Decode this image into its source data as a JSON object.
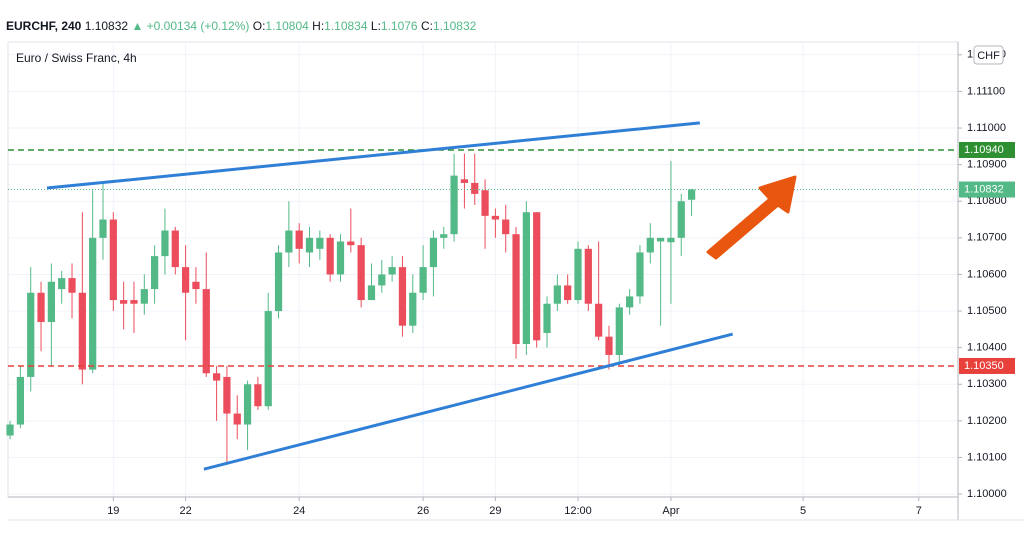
{
  "header": {
    "symbol": "EURCHF, 240",
    "change": "▲ +0.00134 (+0.12%)",
    "open_label": "O:",
    "high_label": "H:",
    "low_label": "L:",
    "close_label": "C:"
  },
  "chart_data": {
    "type": "candlestick",
    "legend": "Euro / Swiss Franc, 4h",
    "currency": "CHF",
    "up_color": "#53b987",
    "down_color": "#eb4d5c",
    "grid": true,
    "open": [
      1.1016,
      1.1019,
      1.1032,
      1.1055,
      1.1047,
      1.1056,
      1.1059,
      1.1055,
      1.1034,
      1.107,
      1.1075,
      1.1053,
      1.1053,
      1.1052,
      1.1056,
      1.1065,
      1.1072,
      1.1062,
      1.1058,
      1.1056,
      1.1033,
      1.1032,
      1.1022,
      1.1019,
      1.103,
      1.1024,
      1.105,
      1.1066,
      1.1072,
      1.1066,
      1.1067,
      1.107,
      1.106,
      1.1069,
      1.1068,
      1.1053,
      1.1057,
      1.106,
      1.1062,
      1.1046,
      1.1055,
      1.1062,
      1.107,
      1.1071,
      1.1086,
      1.1085,
      1.1083,
      1.1076,
      1.1075,
      1.1071,
      1.1041,
      1.1077,
      1.1044,
      1.1052,
      1.1057,
      1.1053,
      1.1067,
      1.1052,
      1.1043,
      1.1038,
      1.1051,
      1.1054,
      1.1066,
      1.1069,
      1.10688,
      1.107,
      1.10804
    ],
    "high": [
      1.102,
      1.1035,
      1.1062,
      1.1058,
      1.1063,
      1.1061,
      1.1063,
      1.1077,
      1.1083,
      1.1085,
      1.1077,
      1.1058,
      1.1058,
      1.106,
      1.1068,
      1.1078,
      1.1073,
      1.1068,
      1.1062,
      1.1066,
      1.1035,
      1.1035,
      1.1027,
      1.1031,
      1.1032,
      1.1055,
      1.1068,
      1.108,
      1.1074,
      1.1073,
      1.1072,
      1.1071,
      1.1071,
      1.1078,
      1.107,
      1.1063,
      1.1064,
      1.1065,
      1.1065,
      1.106,
      1.1068,
      1.1072,
      1.1073,
      1.1093,
      1.1093,
      1.1093,
      1.1086,
      1.1078,
      1.1079,
      1.1073,
      1.108,
      1.1077,
      1.1054,
      1.106,
      1.106,
      1.1069,
      1.1068,
      1.1069,
      1.1046,
      1.1052,
      1.1056,
      1.1068,
      1.1074,
      1.107,
      1.1091,
      1.1082,
      1.10834
    ],
    "low": [
      1.1015,
      1.1018,
      1.1028,
      1.1039,
      1.1035,
      1.1052,
      1.1048,
      1.103,
      1.1033,
      1.1064,
      1.105,
      1.1045,
      1.1044,
      1.1049,
      1.1052,
      1.106,
      1.106,
      1.1042,
      1.1052,
      1.1032,
      1.102,
      1.1008,
      1.1015,
      1.1012,
      1.1023,
      1.1023,
      1.1048,
      1.1062,
      1.1063,
      1.1062,
      1.1064,
      1.1058,
      1.1058,
      1.1066,
      1.1051,
      1.1053,
      1.1055,
      1.1058,
      1.1043,
      1.1044,
      1.1053,
      1.1054,
      1.1067,
      1.1069,
      1.1078,
      1.1079,
      1.1067,
      1.107,
      1.1066,
      1.1037,
      1.1038,
      1.104,
      1.104,
      1.105,
      1.1052,
      1.1052,
      1.105,
      1.1042,
      1.1034,
      1.1035,
      1.1049,
      1.1052,
      1.1063,
      1.1046,
      1.1052,
      1.1065,
      1.1076
    ],
    "close": [
      1.1019,
      1.1032,
      1.1055,
      1.1047,
      1.1058,
      1.1059,
      1.1055,
      1.1034,
      1.107,
      1.1075,
      1.1053,
      1.1052,
      1.1052,
      1.1056,
      1.1065,
      1.1072,
      1.1062,
      1.1055,
      1.1056,
      1.1033,
      1.1031,
      1.1022,
      1.1019,
      1.103,
      1.1024,
      1.105,
      1.1066,
      1.1072,
      1.1067,
      1.107,
      1.107,
      1.106,
      1.1069,
      1.1068,
      1.1053,
      1.1057,
      1.106,
      1.1062,
      1.1046,
      1.1055,
      1.1062,
      1.107,
      1.1071,
      1.1087,
      1.1085,
      1.1082,
      1.1076,
      1.1075,
      1.1071,
      1.1041,
      1.1077,
      1.1042,
      1.1052,
      1.1057,
      1.1053,
      1.1067,
      1.1052,
      1.1043,
      1.1038,
      1.1051,
      1.1054,
      1.1066,
      1.107,
      1.107,
      1.107,
      1.108,
      1.10832
    ],
    "xlim": [
      -0.2,
      91.8
    ],
    "xticks": [
      {
        "value": 10,
        "label": "19"
      },
      {
        "value": 17,
        "label": "22"
      },
      {
        "value": 28,
        "label": "24"
      },
      {
        "value": 40,
        "label": "26"
      },
      {
        "value": 47,
        "label": "29"
      },
      {
        "value": 55,
        "label": "12:00"
      },
      {
        "value": 64,
        "label": "Apr"
      },
      {
        "value": 76.8,
        "label": "5"
      },
      {
        "value": 88,
        "label": "7"
      }
    ],
    "ylim": [
      1.09992,
      1.11235
    ],
    "yticks": [
      {
        "value": 1.1,
        "label": "1.10000"
      },
      {
        "value": 1.101,
        "label": "1.10100"
      },
      {
        "value": 1.102,
        "label": "1.10200"
      },
      {
        "value": 1.103,
        "label": "1.10300"
      },
      {
        "value": 1.104,
        "label": "1.10400"
      },
      {
        "value": 1.105,
        "label": "1.10500"
      },
      {
        "value": 1.106,
        "label": "1.10600"
      },
      {
        "value": 1.107,
        "label": "1.10700"
      },
      {
        "value": 1.108,
        "label": "1.10800"
      },
      {
        "value": 1.109,
        "label": "1.10900"
      },
      {
        "value": 1.11,
        "label": "1.11000"
      },
      {
        "value": 1.111,
        "label": "1.11100"
      },
      {
        "value": 1.112,
        "label": "1.11200"
      }
    ],
    "levels": [
      {
        "value": 1.1094,
        "label": "1.10940",
        "color": "#2f8f33"
      },
      {
        "value": 1.1035,
        "label": "1.10350",
        "color": "#e8413c"
      }
    ],
    "trendlines": [
      {
        "x": [
          3.58,
          66.8
        ],
        "y": [
          1.10836,
          1.11014
        ],
        "color": "#2f7fd6"
      },
      {
        "x": [
          18.77,
          69.98
        ],
        "y": [
          1.10068,
          1.10437
        ],
        "color": "#2f7fd6"
      }
    ]
  }
}
